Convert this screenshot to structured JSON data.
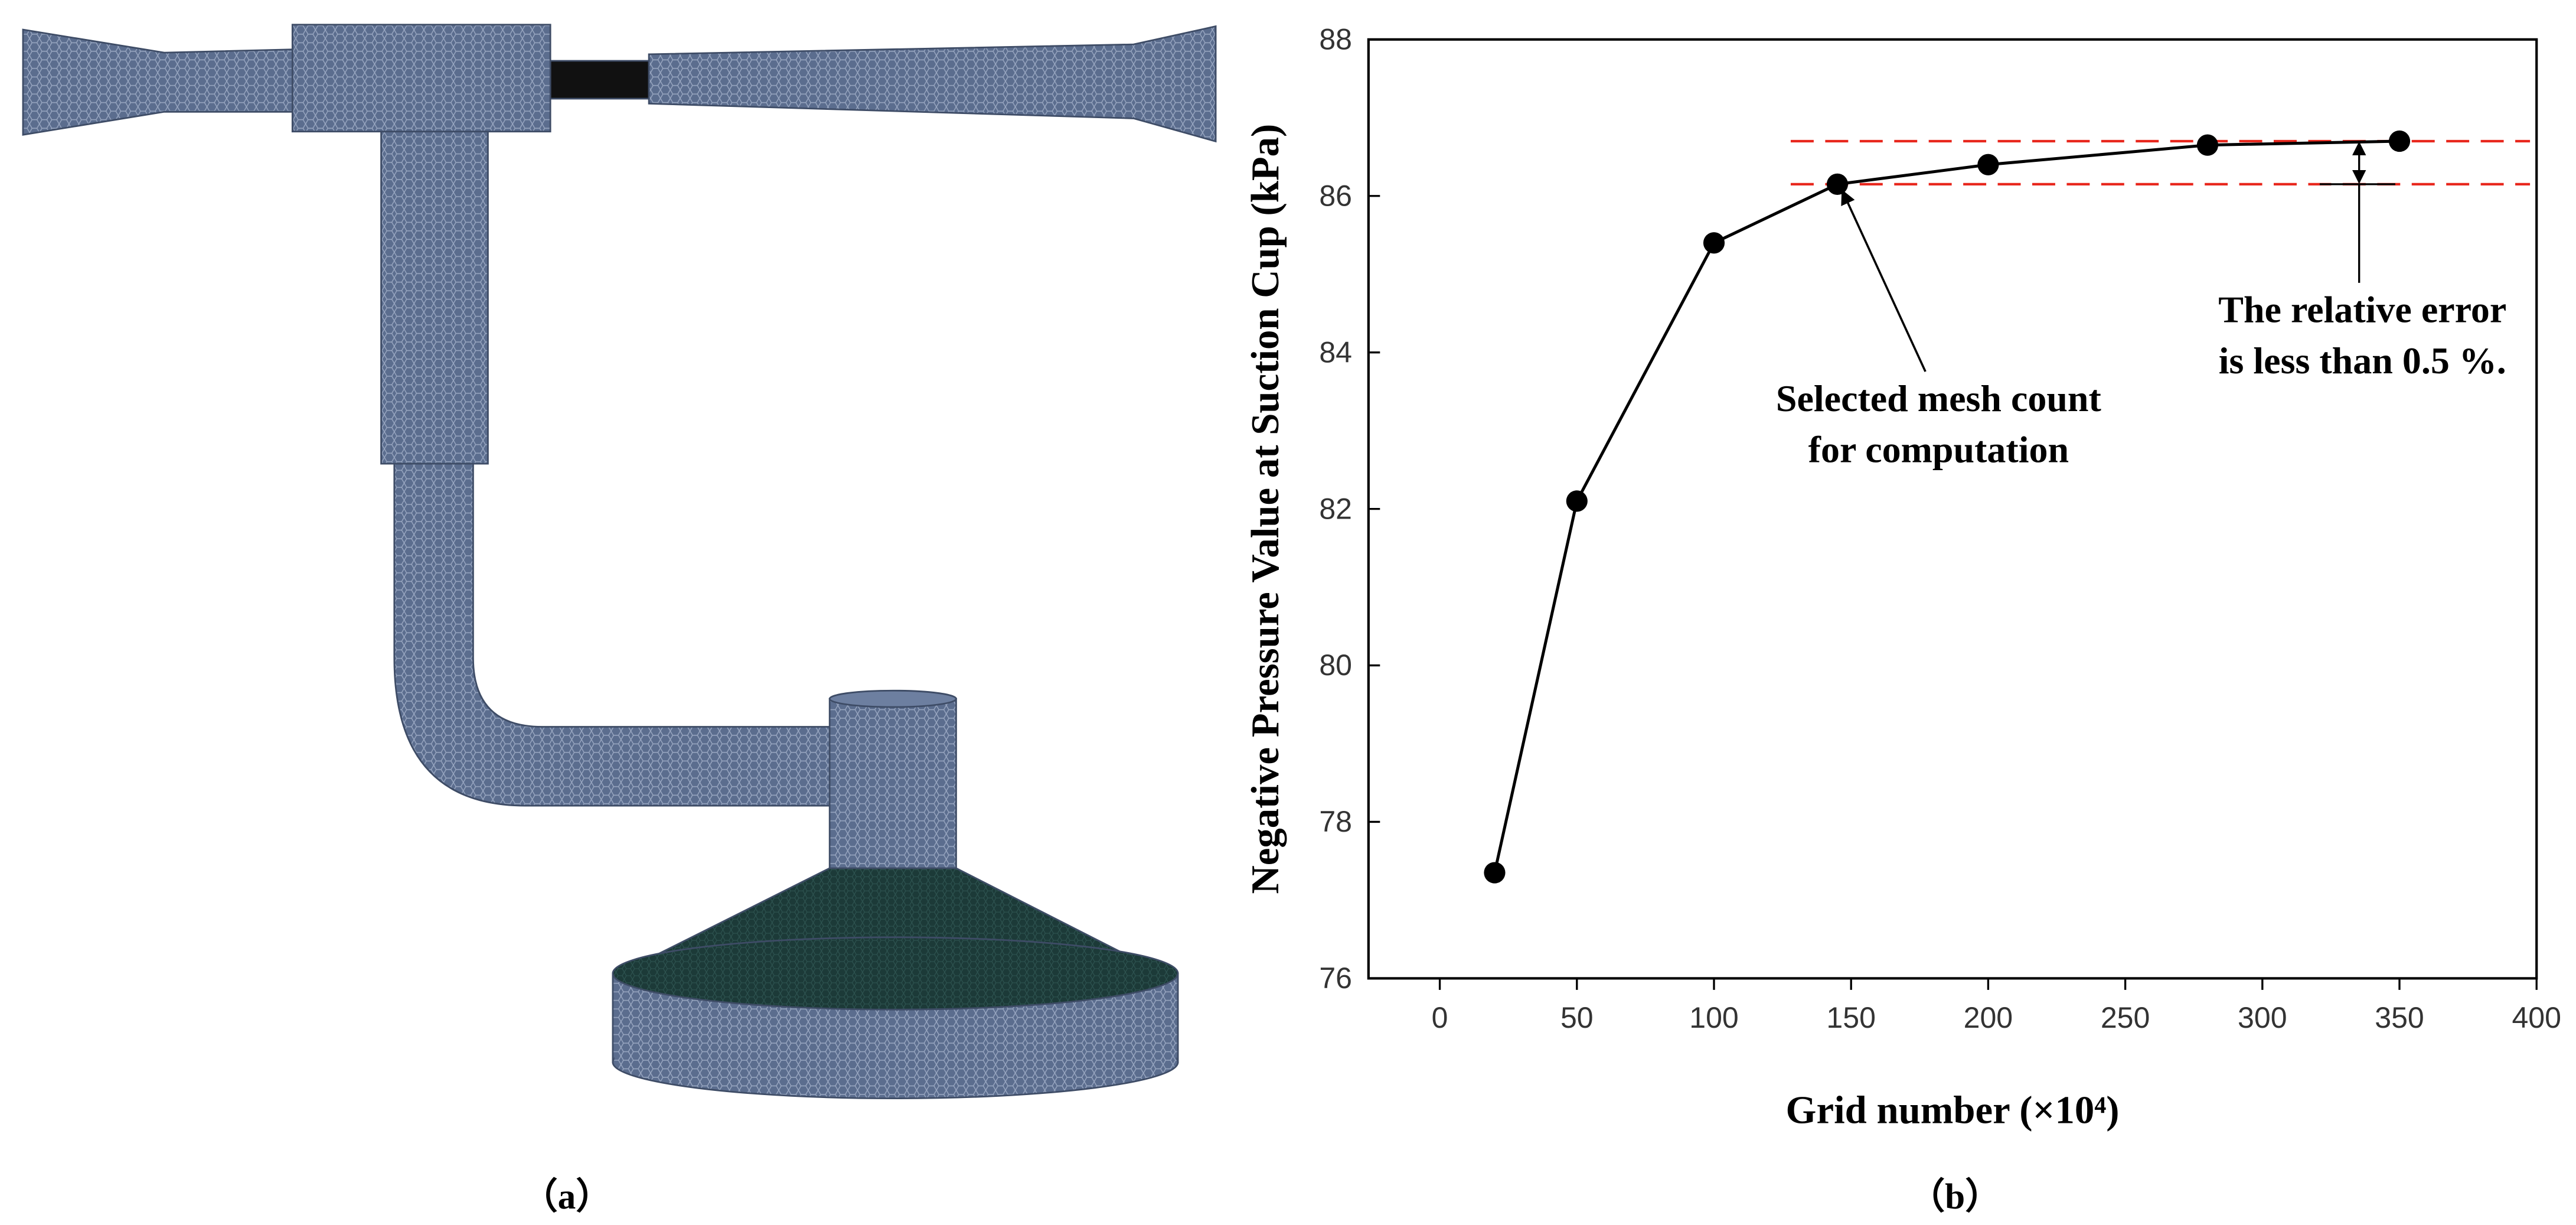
{
  "panel_labels": [
    "（a）",
    "（b）"
  ],
  "chart_data": {
    "type": "line",
    "x_label": "Grid number (×10⁴)",
    "y_label": "Negative Pressure Value at Suction Cup (kPa)",
    "x": [
      20,
      50,
      100,
      145,
      200,
      280,
      350
    ],
    "series": [
      {
        "color": "#000000",
        "values": [
          77.35,
          82.1,
          85.4,
          86.15,
          86.4,
          86.65,
          86.7
        ]
      }
    ],
    "xlim": [
      -26,
      400
    ],
    "xticks": [
      0,
      50,
      100,
      150,
      200,
      250,
      300,
      350,
      400
    ],
    "ylim": [
      76,
      88
    ],
    "yticks": [
      76,
      78,
      80,
      82,
      84,
      86,
      88
    ],
    "reference_lines": {
      "values": [
        86.7,
        86.15
      ],
      "color": "#e8281e"
    },
    "annotations": [
      {
        "lines": [
          "Selected mesh count",
          "for computation"
        ]
      },
      {
        "lines": [
          "The relative error",
          "is less than 0.5 %."
        ]
      }
    ]
  }
}
